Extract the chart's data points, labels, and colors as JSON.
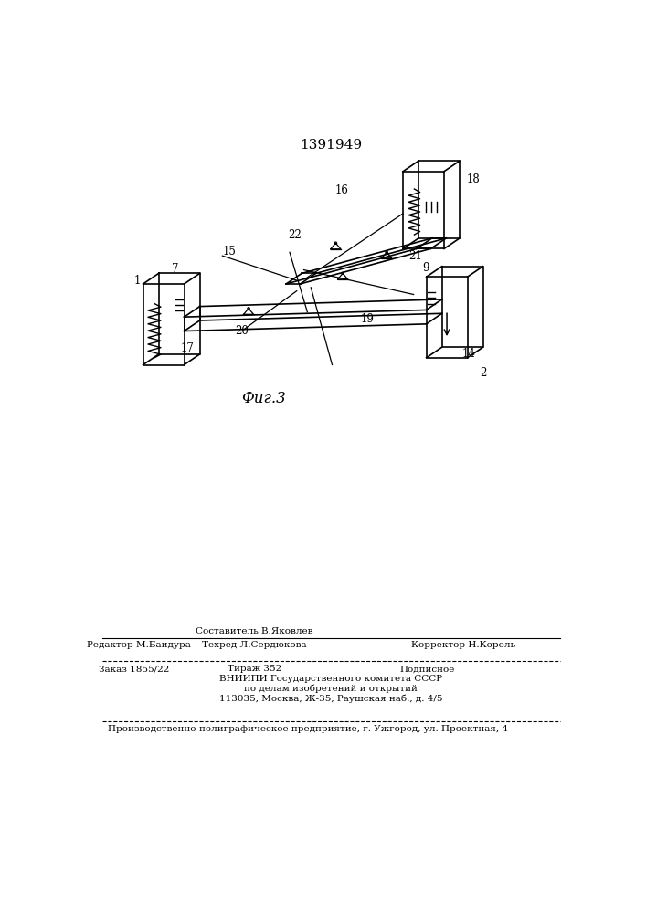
{
  "patent_number": "1391949",
  "figure_label": "Фиг.3",
  "bg_color": "#ffffff",
  "line_color": "#000000",
  "footer": {
    "col1_row1": "Редактор М.Баидура",
    "col2_row0": "Составитель В.Яковлев",
    "col2_row1": "Техред Л.Сердюкова",
    "col3_row1": "Корректор Н.Король",
    "order": "Заказ 1855/22",
    "tirazh": "Тираж 352",
    "podpisnoe": "Подписное",
    "vnipi1": "ВНИИПИ Государственного комитета СССР",
    "vnipi2": "по делам изобретений и открытий",
    "vnipi3": "113035, Москва, Ж-35, Раушская наб., д. 4/5",
    "last_line": "Производственно-полиграфическое предприятие, г. Ужгород, ул. Проектная, 4"
  }
}
